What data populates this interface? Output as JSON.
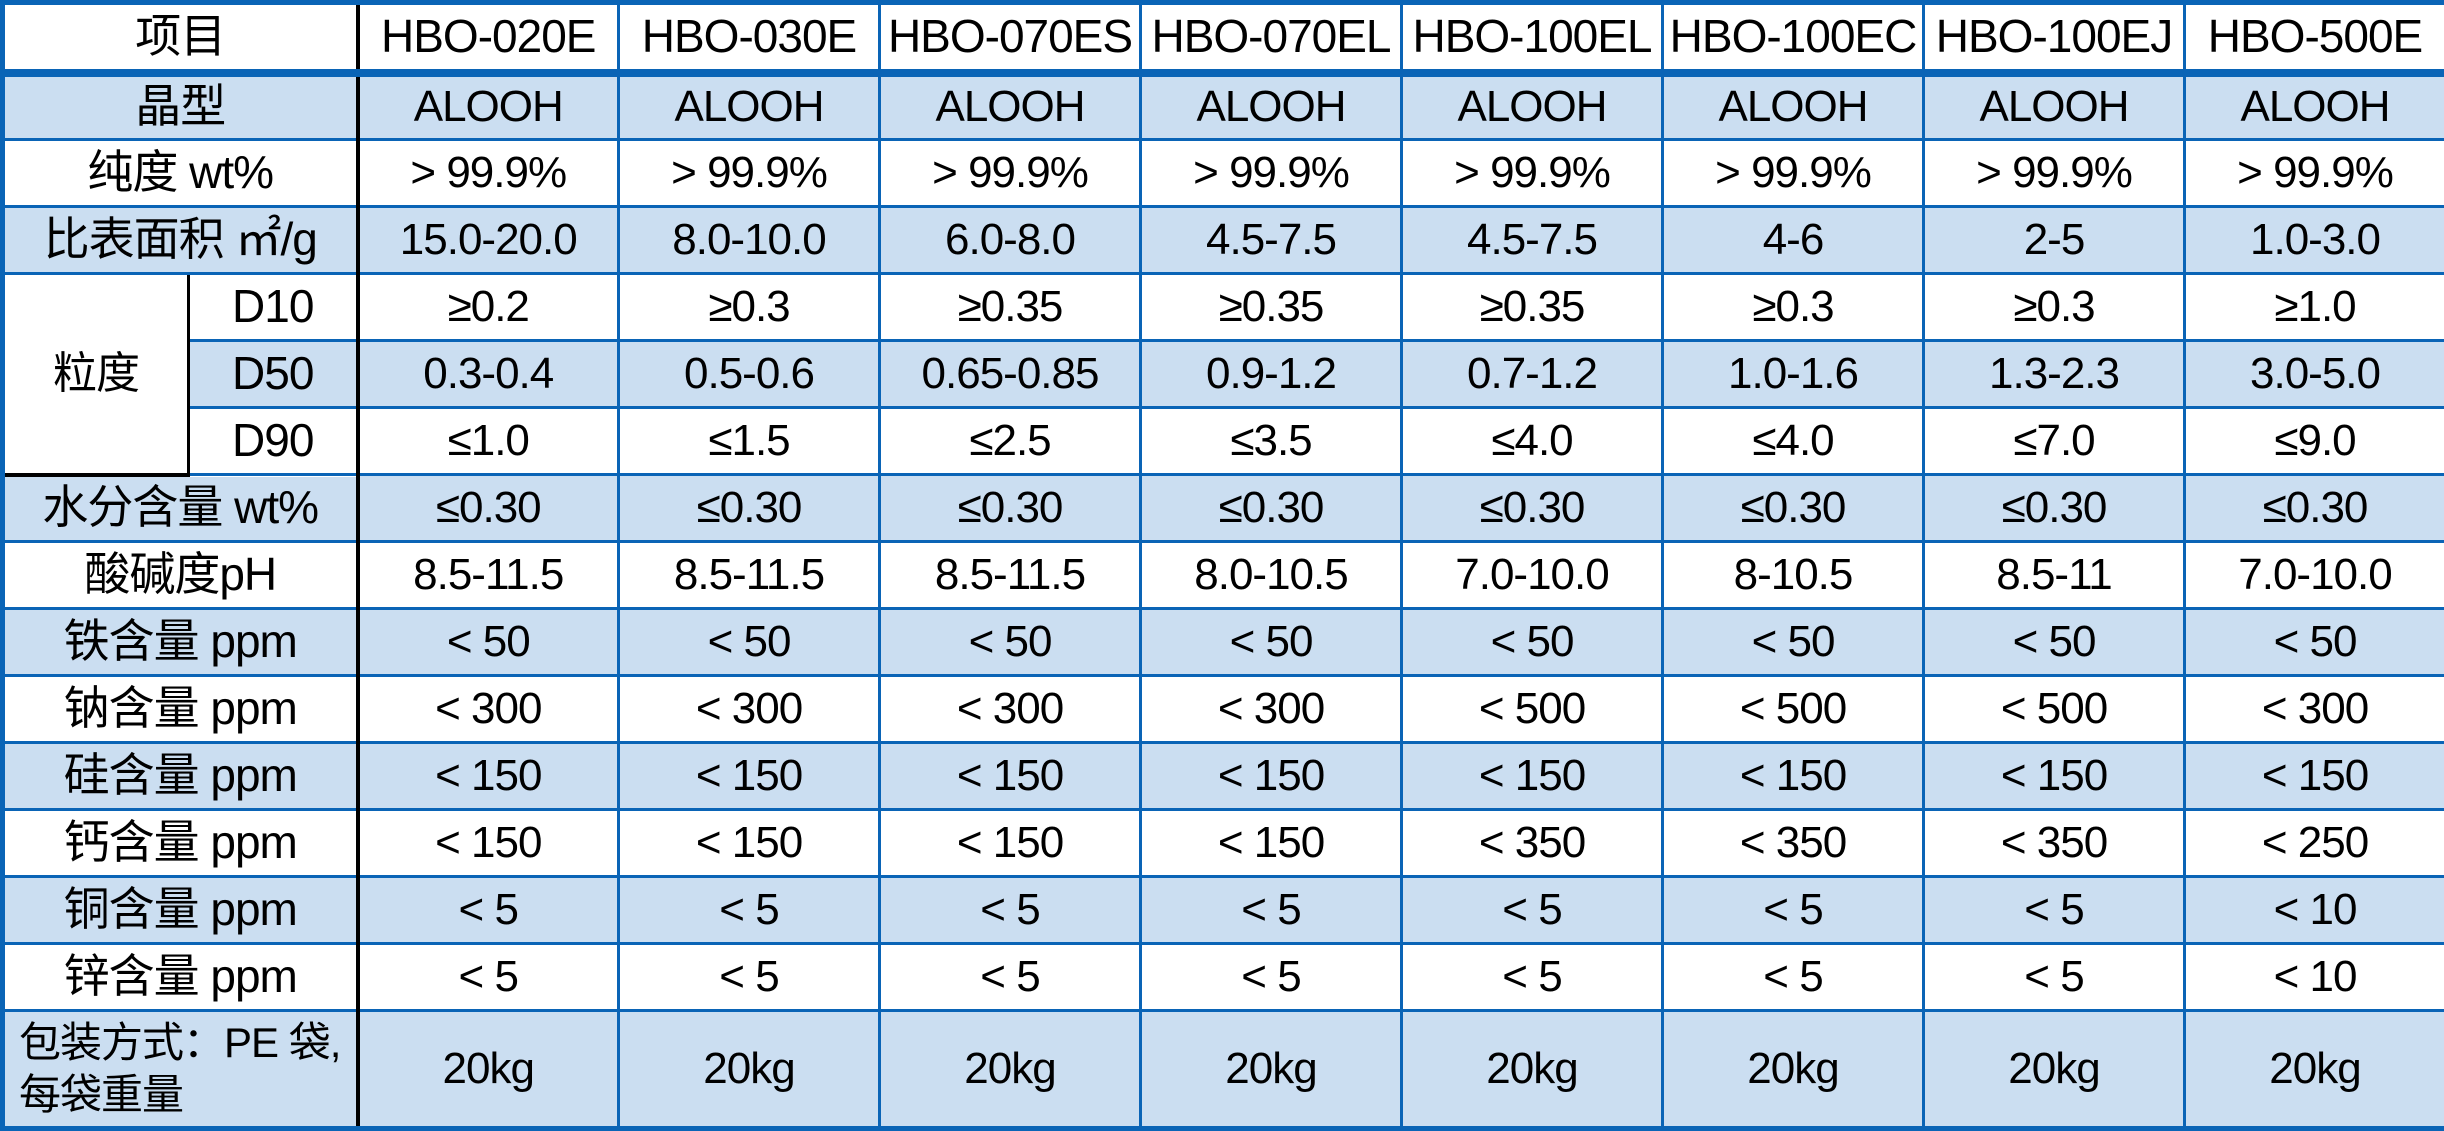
{
  "table": {
    "corner_header": "项目",
    "columns": [
      "HBO-020E",
      "HBO-030E",
      "HBO-070ES",
      "HBO-070EL",
      "HBO-100EL",
      "HBO-100EC",
      "HBO-100EJ",
      "HBO-500E"
    ],
    "rows": [
      {
        "label": "晶型",
        "tone": "blue",
        "values": [
          "ALOOH",
          "ALOOH",
          "ALOOH",
          "ALOOH",
          "ALOOH",
          "ALOOH",
          "ALOOH",
          "ALOOH"
        ]
      },
      {
        "label": "纯度 wt%",
        "tone": "white",
        "values": [
          "> 99.9%",
          "> 99.9%",
          "> 99.9%",
          "> 99.9%",
          "> 99.9%",
          "> 99.9%",
          "> 99.9%",
          "> 99.9%"
        ]
      },
      {
        "label": "比表面积 ㎡/g",
        "tone": "blue",
        "values": [
          "15.0-20.0",
          "8.0-10.0",
          "6.0-8.0",
          "4.5-7.5",
          "4.5-7.5",
          "4-6",
          "2-5",
          "1.0-3.0"
        ]
      },
      {
        "group": "粒度",
        "label": "D10",
        "tone": "white",
        "values": [
          "≥0.2",
          "≥0.3",
          "≥0.35",
          "≥0.35",
          "≥0.35",
          "≥0.3",
          "≥0.3",
          "≥1.0"
        ]
      },
      {
        "group": "粒度",
        "label": "D50",
        "tone": "blue",
        "values": [
          "0.3-0.4",
          "0.5-0.6",
          "0.65-0.85",
          "0.9-1.2",
          "0.7-1.2",
          "1.0-1.6",
          "1.3-2.3",
          "3.0-5.0"
        ]
      },
      {
        "group": "粒度",
        "label": "D90",
        "tone": "white",
        "values": [
          "≤1.0",
          "≤1.5",
          "≤2.5",
          "≤3.5",
          "≤4.0",
          "≤4.0",
          "≤7.0",
          "≤9.0"
        ]
      },
      {
        "label": "水分含量 wt%",
        "tone": "blue",
        "values": [
          "≤0.30",
          "≤0.30",
          "≤0.30",
          "≤0.30",
          "≤0.30",
          "≤0.30",
          "≤0.30",
          "≤0.30"
        ]
      },
      {
        "label": "酸碱度pH",
        "tone": "white",
        "values": [
          "8.5-11.5",
          "8.5-11.5",
          "8.5-11.5",
          "8.0-10.5",
          "7.0-10.0",
          "8-10.5",
          "8.5-11",
          "7.0-10.0"
        ]
      },
      {
        "label": "铁含量 ppm",
        "tone": "blue",
        "values": [
          "< 50",
          "< 50",
          "< 50",
          "< 50",
          "< 50",
          "< 50",
          "< 50",
          "< 50"
        ]
      },
      {
        "label": "钠含量 ppm",
        "tone": "white",
        "values": [
          "< 300",
          "< 300",
          "< 300",
          "< 300",
          "< 500",
          "< 500",
          "< 500",
          "< 300"
        ]
      },
      {
        "label": "硅含量 ppm",
        "tone": "blue",
        "values": [
          "< 150",
          "< 150",
          "< 150",
          "< 150",
          "< 150",
          "< 150",
          "< 150",
          "< 150"
        ]
      },
      {
        "label": "钙含量 ppm",
        "tone": "white",
        "values": [
          "< 150",
          "< 150",
          "< 150",
          "< 150",
          "< 350",
          "< 350",
          "< 350",
          "< 250"
        ]
      },
      {
        "label": "铜含量 ppm",
        "tone": "blue",
        "values": [
          "< 5",
          "< 5",
          "< 5",
          "< 5",
          "< 5",
          "< 5",
          "< 5",
          "< 10"
        ]
      },
      {
        "label": "锌含量 ppm",
        "tone": "white",
        "values": [
          "< 5",
          "< 5",
          "< 5",
          "< 5",
          "< 5",
          "< 5",
          "< 5",
          "< 10"
        ]
      },
      {
        "label": "包装方式：PE 袋,\n每袋重量",
        "tone": "blue",
        "tall": true,
        "align": "left",
        "values": [
          "20kg",
          "20kg",
          "20kg",
          "20kg",
          "20kg",
          "20kg",
          "20kg",
          "20kg"
        ]
      }
    ],
    "colors": {
      "row_blue": "#CBDEF1",
      "row_white": "#FFFFFF",
      "border_blue": "#0A64B6",
      "border_black": "#000000",
      "text": "#000000"
    }
  }
}
